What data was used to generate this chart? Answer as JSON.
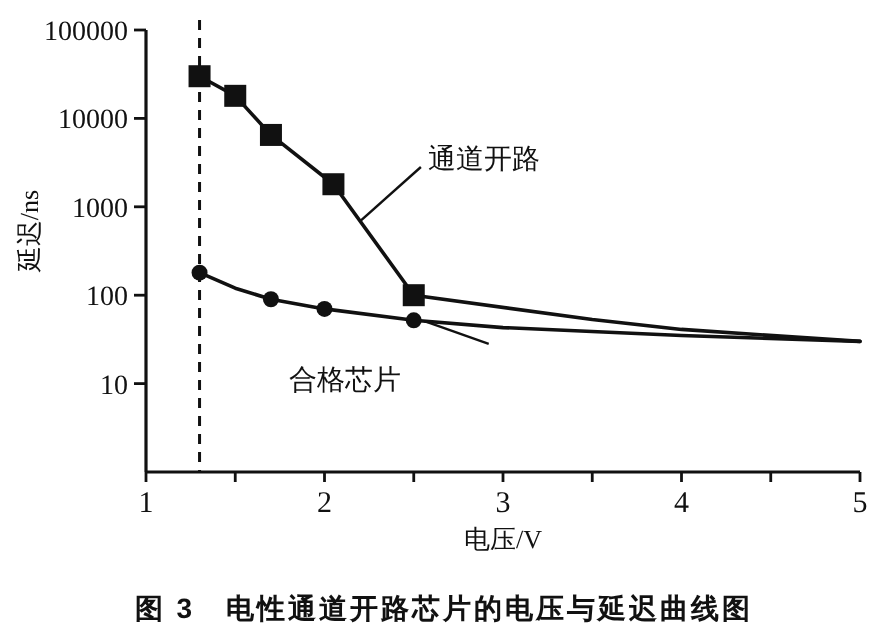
{
  "chart_data": {
    "type": "line",
    "title": "图 3　电性通道开路芯片的电压与延迟曲线图",
    "xlabel": "电压/V",
    "ylabel": "延迟/ns",
    "log": "y",
    "xlim": [
      1,
      5
    ],
    "ylim": [
      1,
      100000
    ],
    "xticks": [
      1,
      {
        "value": 1.5,
        "label": null
      },
      2,
      {
        "value": 2.5,
        "label": null
      },
      3,
      {
        "value": 3.5,
        "label": null
      },
      4,
      {
        "value": 4.5,
        "label": null
      },
      5
    ],
    "yticks": [
      10,
      100,
      1000,
      10000,
      100000
    ],
    "ref_lines": [
      {
        "axis": "x",
        "value": 1.3,
        "color": "#111111",
        "line_style": "dashed"
      }
    ],
    "series": [
      {
        "name": "通道开路",
        "type": "line",
        "marker": "none",
        "color": "#111111",
        "x": [
          1.3,
          1.5,
          1.7,
          2.05,
          2.5,
          3.5,
          4,
          5
        ],
        "values": [
          30000,
          18000,
          6500,
          1800,
          100,
          53,
          41,
          30
        ]
      },
      {
        "name": "合格芯片",
        "type": "line",
        "marker": "none",
        "color": "#111111",
        "x": [
          1.3,
          1.5,
          1.7,
          2,
          2.5,
          3,
          4,
          5
        ],
        "values": [
          180,
          120,
          90,
          70,
          52,
          43,
          35,
          30
        ]
      },
      {
        "type": "scatter",
        "marker": "square",
        "color": "#111111",
        "x": [
          1.3,
          1.5,
          1.7,
          2.05,
          2.5
        ],
        "values": [
          30000,
          18000,
          6500,
          1800,
          100
        ]
      },
      {
        "type": "scatter",
        "marker": "circle",
        "color": "#111111",
        "x": [
          1.3,
          1.7,
          2,
          2.5
        ],
        "values": [
          180,
          90,
          70,
          52
        ]
      }
    ]
  }
}
